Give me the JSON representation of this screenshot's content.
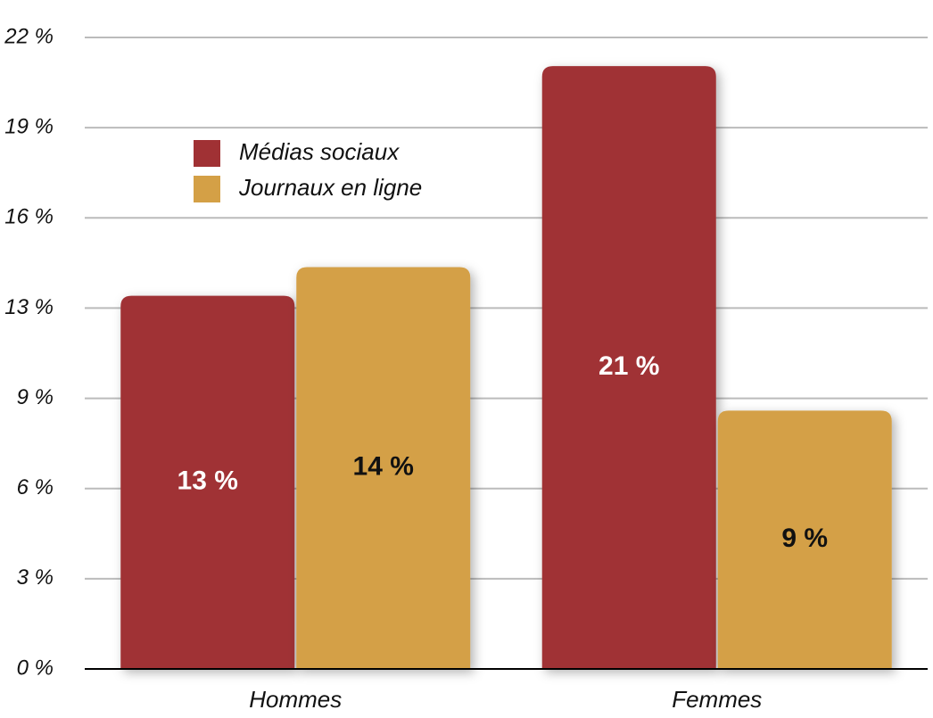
{
  "chart_data": {
    "type": "bar",
    "categories": [
      "Hommes",
      "Femmes"
    ],
    "series": [
      {
        "name": "Médias sociaux",
        "color": "#a03134",
        "values": [
          13,
          21
        ],
        "value_labels": [
          "13 %",
          "21 %"
        ]
      },
      {
        "name": "Journaux en ligne",
        "color": "#d4a046",
        "values": [
          14,
          9
        ],
        "value_labels": [
          "14 %",
          "9 %"
        ]
      }
    ],
    "ylim": [
      0,
      22
    ],
    "yticks": [
      {
        "value": 0,
        "label": "0 %"
      },
      {
        "value": 3.1429,
        "label": "3 %"
      },
      {
        "value": 6.2857,
        "label": "6 %"
      },
      {
        "value": 9.4286,
        "label": "9 %"
      },
      {
        "value": 12.5714,
        "label": "13 %"
      },
      {
        "value": 15.7143,
        "label": "16 %"
      },
      {
        "value": 18.8571,
        "label": "19 %"
      },
      {
        "value": 22,
        "label": "22 %"
      }
    ],
    "grid": true
  }
}
